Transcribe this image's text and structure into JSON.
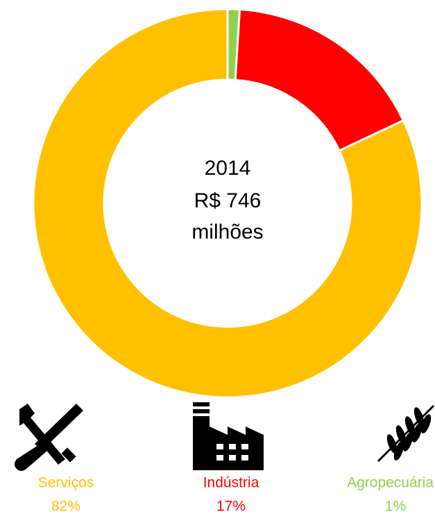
{
  "chart_data": {
    "type": "pie",
    "donut": true,
    "center_text": [
      "2014",
      "R$ 746",
      "milhões"
    ],
    "categories": [
      "Agropecuária",
      "Indústria",
      "Serviços"
    ],
    "values": [
      1,
      17,
      82
    ],
    "value_labels": [
      "1%",
      "17%",
      "82%"
    ],
    "colors": [
      "#92d050",
      "#ff0000",
      "#ffc000"
    ]
  }
}
